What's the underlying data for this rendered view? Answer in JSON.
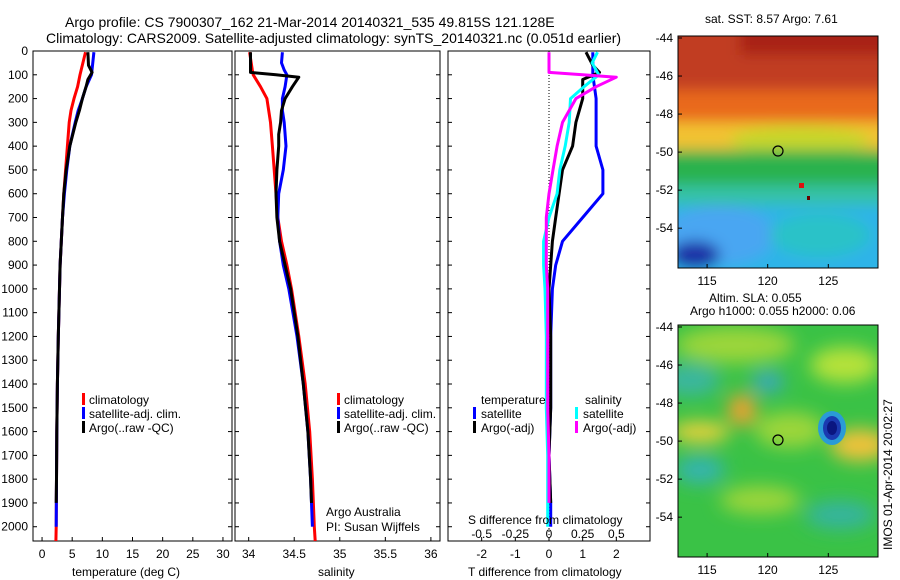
{
  "title": {
    "line1": "Argo profile: CS 7900307_162 21-Mar-2014 20140321_535 49.815S 121.128E",
    "line2": "Climatology: CARS2009. Satellite-adjusted climatology: synTS_20140321.nc (0.051d earlier)"
  },
  "colors": {
    "climatology": "#ff0000",
    "satellite": "#0000ff",
    "argo": "#000000",
    "sat_salinity": "#00ffff",
    "argo_salinity": "#ff00ff"
  },
  "depth_ticks": [
    "0",
    "100",
    "200",
    "300",
    "400",
    "500",
    "600",
    "700",
    "800",
    "900",
    "1000",
    "1100",
    "1200",
    "1300",
    "1400",
    "1500",
    "1600",
    "1700",
    "1800",
    "1900",
    "2000"
  ],
  "legend_profiles": {
    "climatology": "climatology",
    "satellite": "satellite-adj. clim.",
    "argo": "Argo(..raw -QC)"
  },
  "legend_diff": {
    "temperature": "temperature",
    "salinity": "salinity",
    "t_satellite": "satellite",
    "t_argo": "Argo(-adj)",
    "s_satellite": "satellite",
    "s_argo": "Argo(-adj)"
  },
  "annotation": {
    "line1": "Argo Australia",
    "line2": "PI: Susan Wijffels"
  },
  "map_sst": {
    "title": "sat. SST: 8.57  Argo: 7.61",
    "yticks": [
      "-44",
      "-46",
      "-48",
      "-50",
      "-52",
      "-54"
    ],
    "xticks": [
      "115",
      "120",
      "125"
    ]
  },
  "map_sla": {
    "title1": "Altim. SLA: 0.055",
    "title2": "Argo h1000: 0.055 h2000: 0.06",
    "yticks": [
      "-44",
      "-46",
      "-48",
      "-50",
      "-52",
      "-54"
    ],
    "xticks": [
      "115",
      "120",
      "125"
    ]
  },
  "footer": "IMOS 01-Apr-2014 20:02:27",
  "chart_data": [
    {
      "type": "line",
      "panel": "temperature",
      "xlabel": "temperature (deg C)",
      "ylabel": "",
      "xticks": [
        0,
        5,
        10,
        15,
        20,
        25,
        30
      ],
      "xlim": [
        -1.5,
        31.5
      ],
      "ylim": [
        2060,
        0
      ],
      "series": [
        {
          "name": "climatology",
          "depth": [
            5,
            100,
            150,
            200,
            250,
            300,
            400,
            500,
            600,
            700,
            800,
            900,
            1000,
            1200,
            1400,
            1600,
            1800,
            2000,
            2060
          ],
          "values": [
            7.2,
            6.3,
            5.9,
            5.3,
            4.8,
            4.5,
            4.2,
            3.9,
            3.6,
            3.4,
            3.2,
            3.0,
            2.9,
            2.7,
            2.55,
            2.45,
            2.4,
            2.35,
            2.3
          ]
        },
        {
          "name": "satellite-adj. clim.",
          "depth": [
            5,
            100,
            150,
            200,
            250,
            300,
            400,
            500,
            600,
            700,
            800,
            900,
            1000,
            1200,
            1400,
            1600,
            1800,
            2000
          ],
          "values": [
            8.6,
            8.2,
            7.3,
            6.7,
            6.0,
            5.5,
            4.6,
            4.1,
            3.7,
            3.4,
            3.2,
            3.0,
            2.9,
            2.7,
            2.55,
            2.45,
            2.4,
            2.35
          ]
        },
        {
          "name": "Argo(..raw -QC)",
          "depth": [
            5,
            60,
            90,
            120,
            150,
            200,
            250,
            300,
            400,
            500,
            600,
            700,
            800,
            900,
            1000,
            1200,
            1400,
            1600,
            1800,
            1900
          ],
          "values": [
            7.6,
            7.7,
            8.3,
            7.6,
            7.3,
            6.7,
            6.2,
            5.6,
            4.6,
            4.0,
            3.6,
            3.4,
            3.2,
            3.0,
            2.9,
            2.7,
            2.55,
            2.45,
            2.4,
            2.35
          ]
        }
      ]
    },
    {
      "type": "line",
      "panel": "salinity",
      "xlabel": "salinity",
      "ylabel": "",
      "xticks": [
        34,
        34.5,
        35,
        35.5,
        36
      ],
      "xlim": [
        33.85,
        36.1
      ],
      "ylim": [
        2060,
        0
      ],
      "series": [
        {
          "name": "climatology",
          "depth": [
            5,
            80,
            100,
            150,
            200,
            250,
            300,
            400,
            500,
            600,
            700,
            800,
            900,
            1000,
            1200,
            1400,
            1600,
            1800,
            2000,
            2060
          ],
          "values": [
            34.01,
            34.04,
            34.05,
            34.13,
            34.2,
            34.22,
            34.24,
            34.26,
            34.28,
            34.3,
            34.32,
            34.36,
            34.42,
            34.47,
            34.55,
            34.62,
            34.67,
            34.7,
            34.72,
            34.73
          ]
        },
        {
          "name": "satellite-adj. clim.",
          "depth": [
            5,
            50,
            80,
            100,
            150,
            200,
            250,
            300,
            400,
            500,
            600,
            700,
            800,
            900,
            1000,
            1200,
            1400,
            1600,
            1800,
            2000
          ],
          "values": [
            34.37,
            34.36,
            34.39,
            34.42,
            34.4,
            34.37,
            34.37,
            34.39,
            34.41,
            34.38,
            34.33,
            34.32,
            34.34,
            34.38,
            34.44,
            34.53,
            34.6,
            34.65,
            34.68,
            34.7
          ]
        },
        {
          "name": "Argo(..raw -QC)",
          "depth": [
            5,
            90,
            100,
            110,
            150,
            200,
            250,
            300,
            350,
            400,
            500,
            600,
            700,
            800,
            900,
            1000,
            1200,
            1400,
            1600,
            1800,
            1900
          ],
          "values": [
            34.02,
            34.02,
            34.3,
            34.55,
            34.48,
            34.4,
            34.36,
            34.35,
            34.33,
            34.33,
            34.31,
            34.3,
            34.31,
            34.34,
            34.4,
            34.46,
            34.54,
            34.6,
            34.65,
            34.68,
            34.69
          ]
        }
      ]
    },
    {
      "type": "line",
      "panel": "difference",
      "xlabel": "T difference from climatology",
      "xlabel2": "S difference from climatology",
      "ylabel": "",
      "xticks": [
        -2,
        -1,
        0,
        1,
        2
      ],
      "xtick_labels": [
        "-2",
        "-1",
        "0",
        "1",
        "2"
      ],
      "x2ticks": [
        -0.5,
        -0.25,
        0,
        0.25,
        0.5
      ],
      "x2tick_labels": [
        "-0.5",
        "-0.25",
        "0",
        "0.25",
        "0.5"
      ],
      "xlim": [
        -3,
        3
      ],
      "ylim": [
        2060,
        0
      ],
      "series": [
        {
          "name": "satellite",
          "group": "temperature",
          "depth": [
            5,
            100,
            200,
            300,
            400,
            500,
            600,
            700,
            800,
            900,
            1000,
            1200,
            1500,
            1700,
            1900,
            2000
          ],
          "values": [
            1.3,
            1.3,
            1.4,
            1.4,
            1.4,
            1.6,
            1.6,
            1.0,
            0.4,
            0.2,
            0.1,
            0.05,
            0.05,
            0.0,
            0.05,
            0.05
          ]
        },
        {
          "name": "Argo(-adj)",
          "group": "temperature",
          "depth": [
            5,
            60,
            90,
            120,
            200,
            300,
            400,
            500,
            600,
            700,
            800,
            900,
            1000,
            1200,
            1500,
            1700,
            1900
          ],
          "values": [
            1.1,
            1.3,
            1.5,
            1.0,
            1.0,
            0.8,
            0.7,
            0.4,
            0.3,
            0.2,
            0.1,
            0.05,
            0.0,
            0.05,
            0.05,
            0.0,
            0.05
          ]
        },
        {
          "name": "satellite",
          "group": "salinity",
          "depth": [
            5,
            50,
            100,
            150,
            200,
            300,
            400,
            500,
            600,
            700,
            800,
            900,
            1000,
            1200,
            1500,
            1700,
            1900,
            2000
          ],
          "values": [
            0.36,
            0.32,
            0.37,
            0.26,
            0.16,
            0.15,
            0.12,
            0.08,
            0.06,
            0.0,
            -0.04,
            -0.04,
            -0.03,
            -0.02,
            -0.02,
            -0.01,
            -0.01,
            -0.01
          ]
        },
        {
          "name": "Argo(-adj)",
          "group": "salinity",
          "depth": [
            5,
            90,
            100,
            110,
            150,
            200,
            300,
            400,
            500,
            600,
            700,
            800,
            900,
            1000,
            1200,
            1500,
            1700,
            1900
          ],
          "values": [
            0.0,
            0.0,
            0.25,
            0.5,
            0.35,
            0.2,
            0.1,
            0.06,
            0.03,
            0.0,
            -0.02,
            -0.02,
            -0.02,
            -0.01,
            -0.01,
            -0.01,
            0.0,
            0.0
          ]
        }
      ]
    }
  ]
}
